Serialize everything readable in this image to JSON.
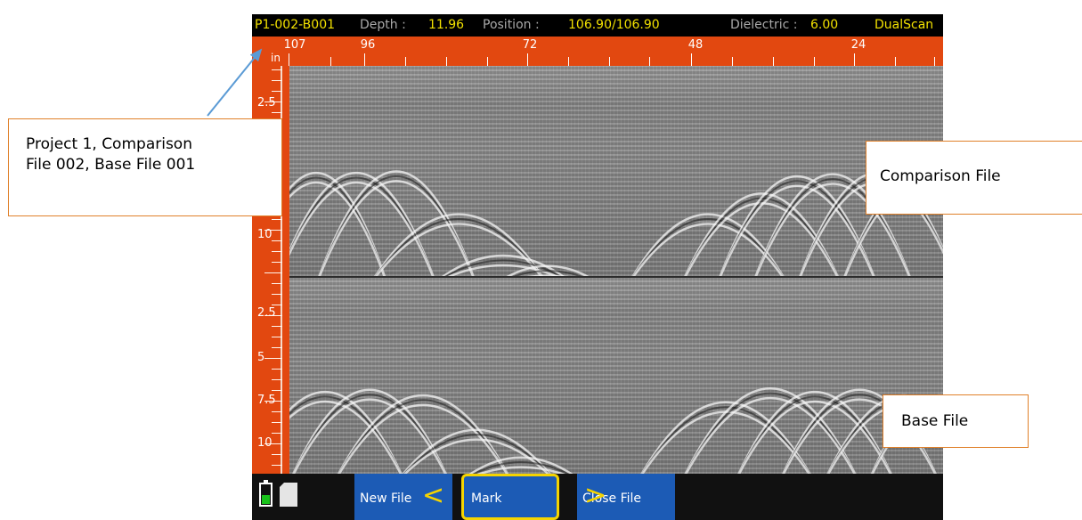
{
  "status_bar": {
    "file_id": "P1-002-B001",
    "depth_label": "Depth : ",
    "depth_value": "11.96",
    "position_label": "Position : ",
    "position_value": "106.90/106.90",
    "dielectric_label": "Dielectric : ",
    "dielectric_value": "6.00",
    "mode": "DualScan"
  },
  "horizontal_ruler": {
    "unit": "in",
    "labels": [
      "107",
      "96",
      "72",
      "48",
      "24"
    ]
  },
  "vertical_ruler": {
    "top_panel_labels": [
      "2.5",
      "10"
    ],
    "bottom_panel_labels": [
      "2.5",
      "5",
      "7.5",
      "10"
    ]
  },
  "toolbar": {
    "new_file": "New File",
    "mark": "Mark",
    "close_file": "Close File",
    "battery_icon": "battery-icon",
    "storage_icon": "sd-card-icon"
  },
  "annotations": {
    "project_callout_line1": "Project 1, Comparison",
    "project_callout_line2": "File 002, Base File 001",
    "comparison_label": "Comparison File",
    "base_label": "Base File"
  },
  "colors": {
    "ruler": "#e24810",
    "status_value": "#f2e100",
    "softkey": "#1c5bb5",
    "selection": "#f5d400",
    "callout_border": "#e0802a"
  }
}
